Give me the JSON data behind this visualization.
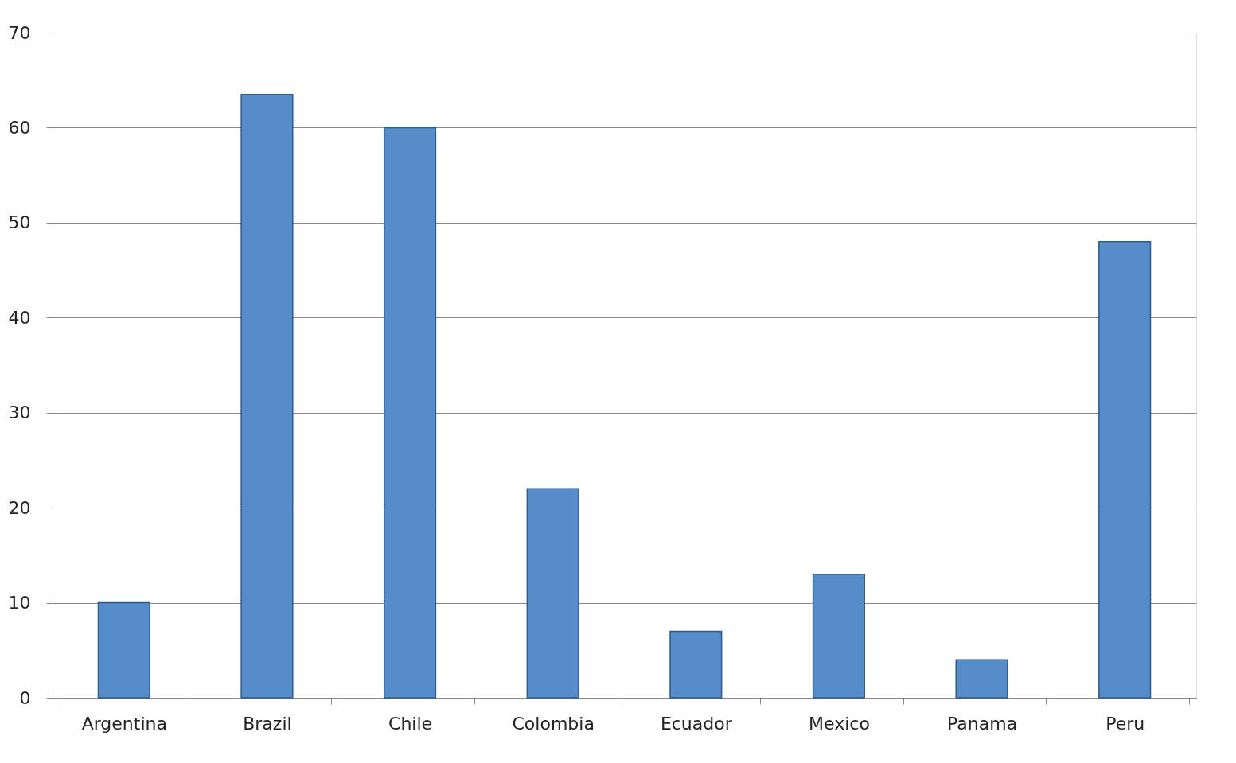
{
  "chart_data": {
    "type": "bar",
    "categories": [
      "Argentina",
      "Brazil",
      "Chile",
      "Colombia",
      "Ecuador",
      "Mexico",
      "Panama",
      "Peru"
    ],
    "values": [
      10,
      63.5,
      60,
      22,
      7,
      13,
      4,
      48
    ],
    "color": "#558cca",
    "ylim": [
      0,
      70
    ],
    "yticks": [
      0,
      10,
      20,
      30,
      40,
      50,
      60,
      70
    ],
    "grid": "y"
  }
}
